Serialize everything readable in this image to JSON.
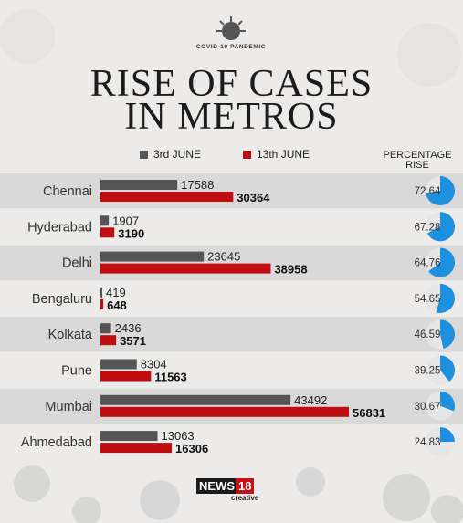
{
  "badge": "COVID-19 PANDEMIC",
  "title_line1": "RISE OF CASES",
  "title_line2": "IN METROS",
  "brand": {
    "part1": "NEWS",
    "part2": "18",
    "tag": "creative"
  },
  "colors": {
    "june3": "#555555",
    "june13": "#bf0d10",
    "pie": "#1e90e0",
    "stripe": "#d9d9d9"
  },
  "chart_data": {
    "type": "bar",
    "orientation": "horizontal",
    "title": "RISE OF CASES IN METROS",
    "categories": [
      "Chennai",
      "Hyderabad",
      "Delhi",
      "Bengaluru",
      "Kolkata",
      "Pune",
      "Mumbai",
      "Ahmedabad"
    ],
    "series": [
      {
        "name": "3rd JUNE",
        "values": [
          17588,
          1907,
          23645,
          419,
          2436,
          8304,
          43492,
          13063
        ]
      },
      {
        "name": "13th JUNE",
        "values": [
          30364,
          3190,
          38958,
          648,
          3571,
          11563,
          56831,
          16306
        ]
      }
    ],
    "percentage_rise": {
      "label": "PERCENTAGE RISE",
      "values": [
        "72.64",
        "67.28",
        "64.76",
        "54.65",
        "46.59",
        "39.25",
        "30.67",
        "24.83"
      ]
    },
    "legend_placement": "top",
    "grid": false
  }
}
